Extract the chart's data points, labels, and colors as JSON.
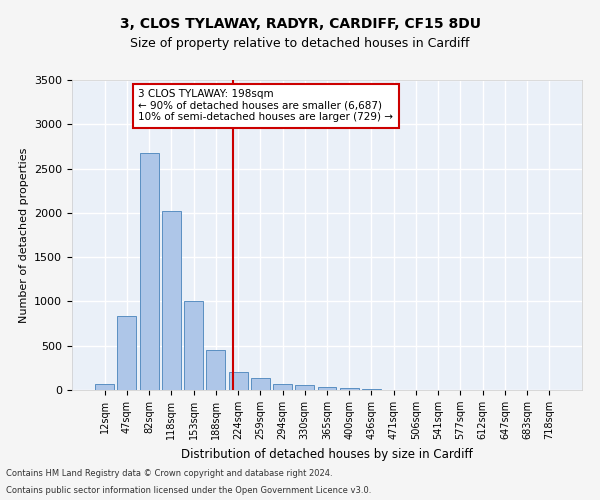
{
  "title1": "3, CLOS TYLAWAY, RADYR, CARDIFF, CF15 8DU",
  "title2": "Size of property relative to detached houses in Cardiff",
  "xlabel": "Distribution of detached houses by size in Cardiff",
  "ylabel": "Number of detached properties",
  "categories": [
    "12sqm",
    "47sqm",
    "82sqm",
    "118sqm",
    "153sqm",
    "188sqm",
    "224sqm",
    "259sqm",
    "294sqm",
    "330sqm",
    "365sqm",
    "400sqm",
    "436sqm",
    "471sqm",
    "506sqm",
    "541sqm",
    "577sqm",
    "612sqm",
    "647sqm",
    "683sqm",
    "718sqm"
  ],
  "values": [
    70,
    840,
    2680,
    2020,
    1000,
    450,
    200,
    130,
    70,
    55,
    30,
    20,
    8,
    5,
    4,
    3,
    2,
    1,
    1,
    0,
    0
  ],
  "bar_color": "#aec6e8",
  "bar_edge_color": "#5a8fc2",
  "vline_color": "#cc0000",
  "annotation_text": "3 CLOS TYLAWAY: 198sqm\n← 90% of detached houses are smaller (6,687)\n10% of semi-detached houses are larger (729) →",
  "annotation_box_color": "#ffffff",
  "annotation_box_edge": "#cc0000",
  "footnote1": "Contains HM Land Registry data © Crown copyright and database right 2024.",
  "footnote2": "Contains public sector information licensed under the Open Government Licence v3.0.",
  "ylim": [
    0,
    3500
  ],
  "yticks": [
    0,
    500,
    1000,
    1500,
    2000,
    2500,
    3000,
    3500
  ],
  "background_color": "#eaf0f8",
  "grid_color": "#ffffff",
  "title1_fontsize": 10,
  "title2_fontsize": 9,
  "fig_facecolor": "#f5f5f5"
}
